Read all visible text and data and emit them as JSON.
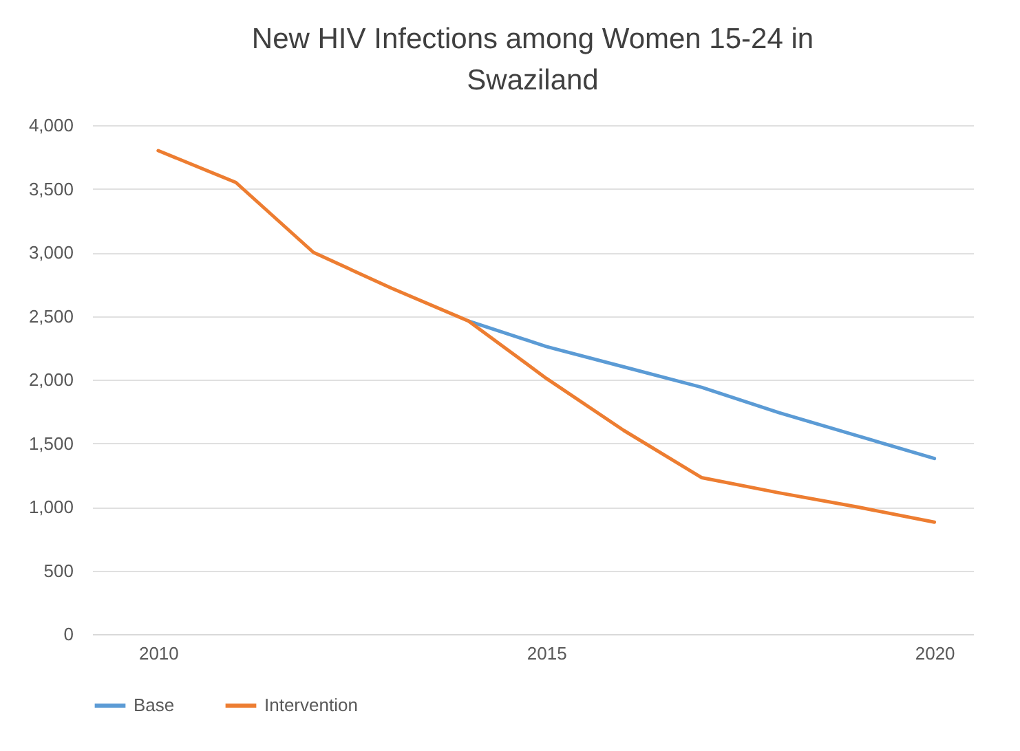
{
  "chart_data": {
    "type": "line",
    "title": "New HIV Infections among Women 15-24 in Swaziland",
    "x": [
      2010,
      2011,
      2012,
      2013,
      2014,
      2015,
      2016,
      2017,
      2018,
      2019,
      2020
    ],
    "series": [
      {
        "name": "Base",
        "color": "#5b9bd5",
        "values": [
          null,
          null,
          null,
          null,
          2460,
          2260,
          2100,
          1940,
          1740,
          1560,
          1380
        ]
      },
      {
        "name": "Intervention",
        "color": "#ed7d31",
        "values": [
          3800,
          3550,
          3000,
          2720,
          2460,
          2010,
          1600,
          1230,
          1110,
          1000,
          880
        ]
      }
    ],
    "xlim": [
      2009.15,
      2020.5
    ],
    "xticks": [
      2010,
      2015,
      2020
    ],
    "ylim": [
      0,
      4000
    ],
    "yticks": [
      0,
      500,
      {
        "value": 1000,
        "label": "1,000"
      },
      {
        "value": 1500,
        "label": "1,500"
      },
      {
        "value": 2000,
        "label": "2,000"
      },
      {
        "value": 2500,
        "label": "2,500"
      },
      {
        "value": 3000,
        "label": "3,000"
      },
      {
        "value": 3500,
        "label": "3,500"
      },
      {
        "value": 4000,
        "label": "4,000"
      }
    ],
    "grid": "y",
    "legend": "bottom",
    "marker": "none",
    "line_style": "solid"
  }
}
